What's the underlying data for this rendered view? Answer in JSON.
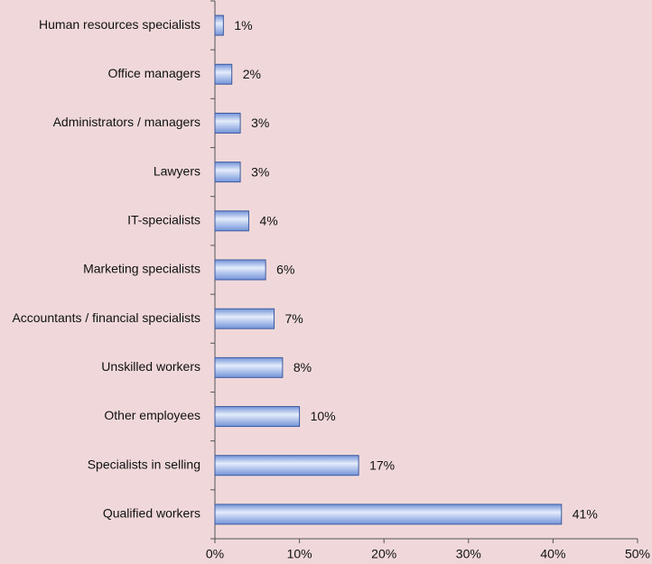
{
  "chart_data": {
    "type": "bar",
    "orientation": "horizontal",
    "categories": [
      "Human resources specialists",
      "Office managers",
      "Administrators / managers",
      "Lawyers",
      "IT-specialists",
      "Marketing specialists",
      "Accountants / financial specialists",
      "Unskilled workers",
      "Other employees",
      "Specialists in selling",
      "Qualified workers"
    ],
    "values": [
      1,
      2,
      3,
      3,
      4,
      6,
      7,
      8,
      10,
      17,
      41
    ],
    "value_labels": [
      "1%",
      "2%",
      "3%",
      "3%",
      "4%",
      "6%",
      "7%",
      "8%",
      "10%",
      "17%",
      "41%"
    ],
    "color": "#7393d8",
    "xlim": [
      0,
      50
    ],
    "xticks": [
      {
        "value": 0,
        "label": "0%"
      },
      {
        "value": 10,
        "label": "10%"
      },
      {
        "value": 20,
        "label": "20%"
      },
      {
        "value": 30,
        "label": "30%"
      },
      {
        "value": 40,
        "label": "40%"
      },
      {
        "value": 50,
        "label": "50%"
      }
    ],
    "grid": false
  }
}
